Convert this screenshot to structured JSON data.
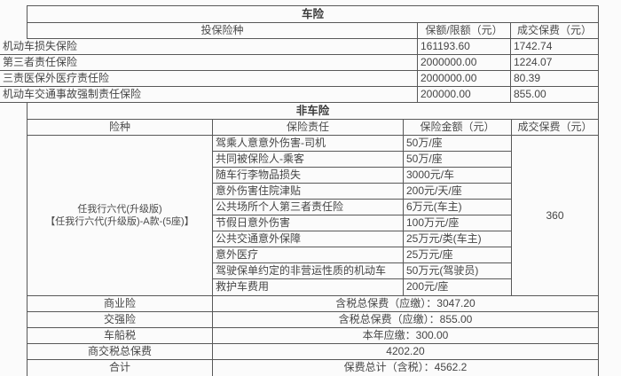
{
  "colors": {
    "background": "#fbfbfb",
    "border": "#585858",
    "text": "#454545"
  },
  "car_section": {
    "title": "车险",
    "headers": [
      "投保险种",
      "保额/限额（元）",
      "成交保费（元）"
    ],
    "rows": [
      {
        "name": "机动车损失保险",
        "amount": "161193.60",
        "premium": "1742.74"
      },
      {
        "name": "第三者责任保险",
        "amount": "2000000.00",
        "premium": "1224.07"
      },
      {
        "name": "三责医保外医疗责任险",
        "amount": "2000000.00",
        "premium": "80.39"
      },
      {
        "name": "机动车交通事故强制责任保险",
        "amount": "200000.00",
        "premium": "855.00"
      }
    ]
  },
  "non_car_section": {
    "title": "非车险",
    "headers": [
      "险种",
      "保险责任",
      "保险金额（元）",
      "成交保费（元）"
    ],
    "product_line1": "任我行六代(升级版)",
    "product_line2": "【任我行六代(升级版)-A款-(5座)】",
    "premium_total": "360",
    "coverages": [
      {
        "name": "驾乘人意意外伤害-司机",
        "amount": "50万/座"
      },
      {
        "name": "共同被保险人-乘客",
        "amount": "50万/座"
      },
      {
        "name": "随车行李物品损失",
        "amount": "3000元/车"
      },
      {
        "name": "意外伤害住院津贴",
        "amount": "200元/天/座"
      },
      {
        "name": "公共场所个人第三者责任险",
        "amount": "6万元(车主)"
      },
      {
        "name": "节假日意外伤害",
        "amount": "100万元/座"
      },
      {
        "name": "公共交通意外保障",
        "amount": "25万元/类(车主)"
      },
      {
        "name": "意外医疗",
        "amount": "25万元/座"
      },
      {
        "name": "驾驶保单约定的非营运性质的机动车",
        "amount": "50万元(驾驶员)"
      },
      {
        "name": "救护车费用",
        "amount": "200元/座"
      }
    ]
  },
  "summary_section": {
    "rows": [
      {
        "label": "商业险",
        "value": "含税总保费（应缴）：3047.20"
      },
      {
        "label": "交强险",
        "value": "含税总保费（应缴）：855.00"
      },
      {
        "label": "车船税",
        "value": "本年应缴：300.00"
      },
      {
        "label": "商交税总保费",
        "value": "4202.20"
      },
      {
        "label": "合计",
        "value": "保费总计（含税）：4562.2"
      }
    ]
  }
}
